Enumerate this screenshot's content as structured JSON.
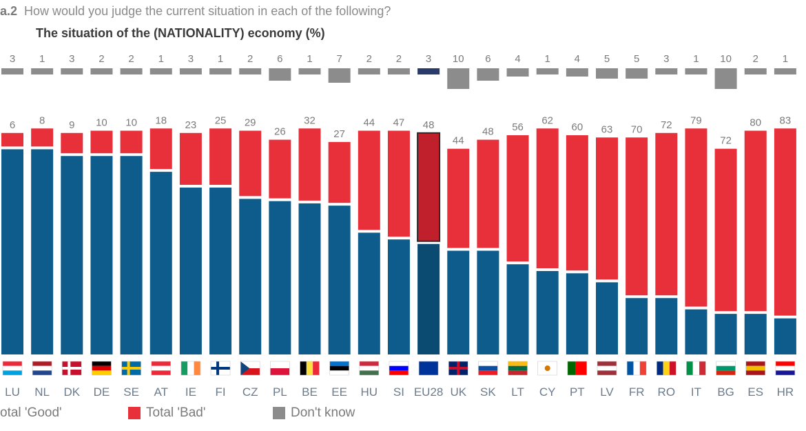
{
  "header": {
    "question_label": "a.2",
    "question_text": "How would you judge the current situation in each of the following?",
    "subtitle": "The situation of the (NATIONALITY) economy  (%)"
  },
  "colors": {
    "good": "#0d5c8c",
    "good_eu": "#0b4b72",
    "bad": "#e8303a",
    "bad_eu": "#c0202c",
    "dont_know": "#8c8c8c",
    "dont_know_eu": "#2a3a6a",
    "value_text": "#7a7a7a"
  },
  "legend": {
    "good_label": "otal 'Good'",
    "bad_label": "Total 'Bad'",
    "dont_know_label": "Don't know"
  },
  "chart_data": {
    "type": "bar",
    "stacked": true,
    "categories": [
      "LU",
      "NL",
      "DK",
      "DE",
      "SE",
      "AT",
      "IE",
      "FI",
      "CZ",
      "PL",
      "BE",
      "EE",
      "HU",
      "SI",
      "EU28",
      "UK",
      "SK",
      "LT",
      "CY",
      "PT",
      "LV",
      "FR",
      "RO",
      "IT",
      "BG",
      "ES",
      "HR"
    ],
    "series": [
      {
        "name": "otal 'Good'",
        "values": [
          91,
          91,
          88,
          88,
          88,
          81,
          74,
          74,
          69,
          68,
          67,
          66,
          54,
          51,
          49,
          46,
          46,
          40,
          37,
          36,
          32,
          25,
          25,
          20,
          18,
          18,
          16
        ]
      },
      {
        "name": "Total 'Bad'",
        "values": [
          6,
          8,
          9,
          10,
          10,
          18,
          23,
          25,
          29,
          26,
          32,
          27,
          44,
          47,
          48,
          44,
          48,
          56,
          62,
          60,
          63,
          70,
          72,
          79,
          72,
          80,
          83
        ]
      },
      {
        "name": "Don't know",
        "values": [
          3,
          1,
          3,
          2,
          2,
          1,
          3,
          1,
          2,
          6,
          1,
          7,
          2,
          2,
          3,
          10,
          6,
          4,
          1,
          4,
          5,
          5,
          3,
          1,
          10,
          2,
          1
        ]
      }
    ],
    "flags": [
      {
        "code": "LU",
        "stripes": "h",
        "colors": [
          "#ed2939",
          "#ffffff",
          "#00a1de"
        ]
      },
      {
        "code": "NL",
        "stripes": "h",
        "colors": [
          "#ae1c28",
          "#ffffff",
          "#21468b"
        ]
      },
      {
        "code": "DK",
        "stripes": "nordic",
        "colors": [
          "#c8102e",
          "#ffffff"
        ]
      },
      {
        "code": "DE",
        "stripes": "h",
        "colors": [
          "#000000",
          "#dd0000",
          "#ffce00"
        ]
      },
      {
        "code": "SE",
        "stripes": "nordic",
        "colors": [
          "#006aa7",
          "#fecc00"
        ]
      },
      {
        "code": "AT",
        "stripes": "h",
        "colors": [
          "#ed2939",
          "#ffffff",
          "#ed2939"
        ]
      },
      {
        "code": "IE",
        "stripes": "v",
        "colors": [
          "#169b62",
          "#ffffff",
          "#ff883e"
        ]
      },
      {
        "code": "FI",
        "stripes": "nordic",
        "colors": [
          "#ffffff",
          "#003580"
        ]
      },
      {
        "code": "CZ",
        "stripes": "h",
        "colors": [
          "#ffffff",
          "#d7141a"
        ],
        "triangle": "#11457e"
      },
      {
        "code": "PL",
        "stripes": "h",
        "colors": [
          "#ffffff",
          "#dc143c"
        ]
      },
      {
        "code": "BE",
        "stripes": "v",
        "colors": [
          "#000000",
          "#fae042",
          "#ed2939"
        ]
      },
      {
        "code": "EE",
        "stripes": "h",
        "colors": [
          "#0072ce",
          "#000000",
          "#ffffff"
        ]
      },
      {
        "code": "HU",
        "stripes": "h",
        "colors": [
          "#cd2a3e",
          "#ffffff",
          "#436f4d"
        ]
      },
      {
        "code": "SI",
        "stripes": "h",
        "colors": [
          "#ffffff",
          "#0000ff",
          "#ff0000"
        ]
      },
      {
        "code": "EU28",
        "stripes": "h",
        "colors": [
          "#003399"
        ]
      },
      {
        "code": "UK",
        "stripes": "h",
        "colors": [
          "#012169"
        ],
        "cross": "#c8102e"
      },
      {
        "code": "SK",
        "stripes": "h",
        "colors": [
          "#ffffff",
          "#0b4ea2",
          "#ee1c25"
        ]
      },
      {
        "code": "LT",
        "stripes": "h",
        "colors": [
          "#fdb913",
          "#006a44",
          "#c1272d"
        ]
      },
      {
        "code": "CY",
        "stripes": "h",
        "colors": [
          "#ffffff"
        ],
        "dot": "#d57800"
      },
      {
        "code": "PT",
        "stripes": "v2",
        "colors": [
          "#006600",
          "#ff0000"
        ]
      },
      {
        "code": "LV",
        "stripes": "h",
        "colors": [
          "#9e3039",
          "#ffffff",
          "#9e3039"
        ]
      },
      {
        "code": "FR",
        "stripes": "v",
        "colors": [
          "#0055a4",
          "#ffffff",
          "#ef4135"
        ]
      },
      {
        "code": "RO",
        "stripes": "v",
        "colors": [
          "#002b7f",
          "#fcd116",
          "#ce1126"
        ]
      },
      {
        "code": "IT",
        "stripes": "v",
        "colors": [
          "#009246",
          "#ffffff",
          "#ce2b37"
        ]
      },
      {
        "code": "BG",
        "stripes": "h",
        "colors": [
          "#ffffff",
          "#00966e",
          "#d62612"
        ]
      },
      {
        "code": "ES",
        "stripes": "h",
        "colors": [
          "#aa151b",
          "#f1bf00",
          "#aa151b"
        ]
      },
      {
        "code": "HR",
        "stripes": "h",
        "colors": [
          "#ff0000",
          "#ffffff",
          "#171796"
        ]
      }
    ]
  }
}
